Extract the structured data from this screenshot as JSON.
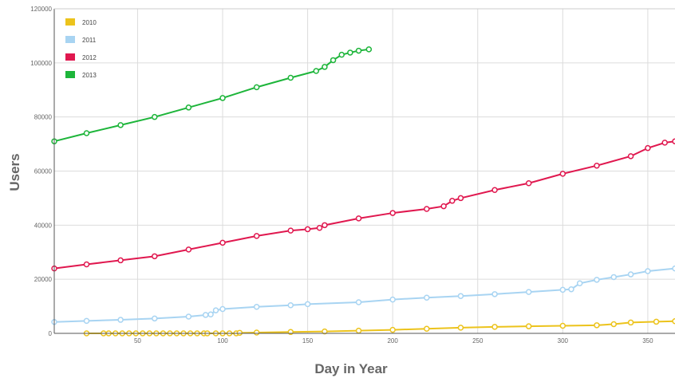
{
  "chart_data": {
    "type": "scatter",
    "title": "",
    "xlabel": "Day in Year",
    "ylabel": "Users",
    "xlim": [
      1,
      366
    ],
    "ylim": [
      0,
      120000
    ],
    "x_ticks": [
      50,
      100,
      150,
      200,
      250,
      300,
      350
    ],
    "y_ticks": [
      0,
      20000,
      40000,
      60000,
      80000,
      100000,
      120000
    ],
    "grid": true,
    "legend_position": "top-left",
    "series": [
      {
        "name": "2010",
        "color": "#ecc31c",
        "points": [
          [
            20,
            0
          ],
          [
            30,
            0
          ],
          [
            33,
            0
          ],
          [
            37,
            0
          ],
          [
            41,
            0
          ],
          [
            45,
            0
          ],
          [
            49,
            0
          ],
          [
            53,
            0
          ],
          [
            57,
            0
          ],
          [
            61,
            0
          ],
          [
            65,
            0
          ],
          [
            69,
            0
          ],
          [
            73,
            0
          ],
          [
            77,
            0
          ],
          [
            81,
            0
          ],
          [
            85,
            0
          ],
          [
            89,
            0
          ],
          [
            91,
            0
          ],
          [
            96,
            0
          ],
          [
            100,
            0
          ],
          [
            104,
            0
          ],
          [
            108,
            0
          ],
          [
            110,
            200
          ],
          [
            120,
            300
          ],
          [
            140,
            500
          ],
          [
            160,
            700
          ],
          [
            180,
            1000
          ],
          [
            200,
            1300
          ],
          [
            220,
            1700
          ],
          [
            240,
            2100
          ],
          [
            260,
            2400
          ],
          [
            280,
            2600
          ],
          [
            300,
            2800
          ],
          [
            320,
            3000
          ],
          [
            330,
            3400
          ],
          [
            340,
            4000
          ],
          [
            355,
            4300
          ],
          [
            366,
            4500
          ]
        ]
      },
      {
        "name": "2011",
        "color": "#a8d4f2",
        "points": [
          [
            1,
            4200
          ],
          [
            20,
            4600
          ],
          [
            40,
            5000
          ],
          [
            60,
            5500
          ],
          [
            80,
            6200
          ],
          [
            90,
            6800
          ],
          [
            93,
            7000
          ],
          [
            96,
            8500
          ],
          [
            100,
            9000
          ],
          [
            120,
            9800
          ],
          [
            140,
            10400
          ],
          [
            150,
            10800
          ],
          [
            180,
            11500
          ],
          [
            200,
            12500
          ],
          [
            220,
            13200
          ],
          [
            240,
            13800
          ],
          [
            260,
            14500
          ],
          [
            280,
            15300
          ],
          [
            300,
            16100
          ],
          [
            305,
            16300
          ],
          [
            310,
            18500
          ],
          [
            320,
            19800
          ],
          [
            330,
            20800
          ],
          [
            340,
            21800
          ],
          [
            350,
            23000
          ],
          [
            366,
            24000
          ]
        ]
      },
      {
        "name": "2012",
        "color": "#e0184f",
        "points": [
          [
            1,
            24000
          ],
          [
            20,
            25500
          ],
          [
            40,
            27000
          ],
          [
            60,
            28500
          ],
          [
            80,
            31000
          ],
          [
            100,
            33500
          ],
          [
            120,
            36000
          ],
          [
            140,
            38000
          ],
          [
            150,
            38500
          ],
          [
            157,
            39000
          ],
          [
            160,
            40000
          ],
          [
            180,
            42500
          ],
          [
            200,
            44500
          ],
          [
            220,
            46000
          ],
          [
            230,
            47000
          ],
          [
            235,
            49000
          ],
          [
            240,
            50000
          ],
          [
            260,
            53000
          ],
          [
            280,
            55500
          ],
          [
            300,
            59000
          ],
          [
            320,
            62000
          ],
          [
            340,
            65500
          ],
          [
            350,
            68500
          ],
          [
            360,
            70500
          ],
          [
            366,
            71000
          ]
        ]
      },
      {
        "name": "2013",
        "color": "#1db53a",
        "points": [
          [
            1,
            71000
          ],
          [
            20,
            74000
          ],
          [
            40,
            77000
          ],
          [
            60,
            80000
          ],
          [
            80,
            83500
          ],
          [
            100,
            87000
          ],
          [
            120,
            91000
          ],
          [
            140,
            94500
          ],
          [
            155,
            97000
          ],
          [
            160,
            98500
          ],
          [
            165,
            101000
          ],
          [
            170,
            103000
          ],
          [
            175,
            103800
          ],
          [
            180,
            104500
          ],
          [
            186,
            105000
          ]
        ]
      }
    ]
  }
}
